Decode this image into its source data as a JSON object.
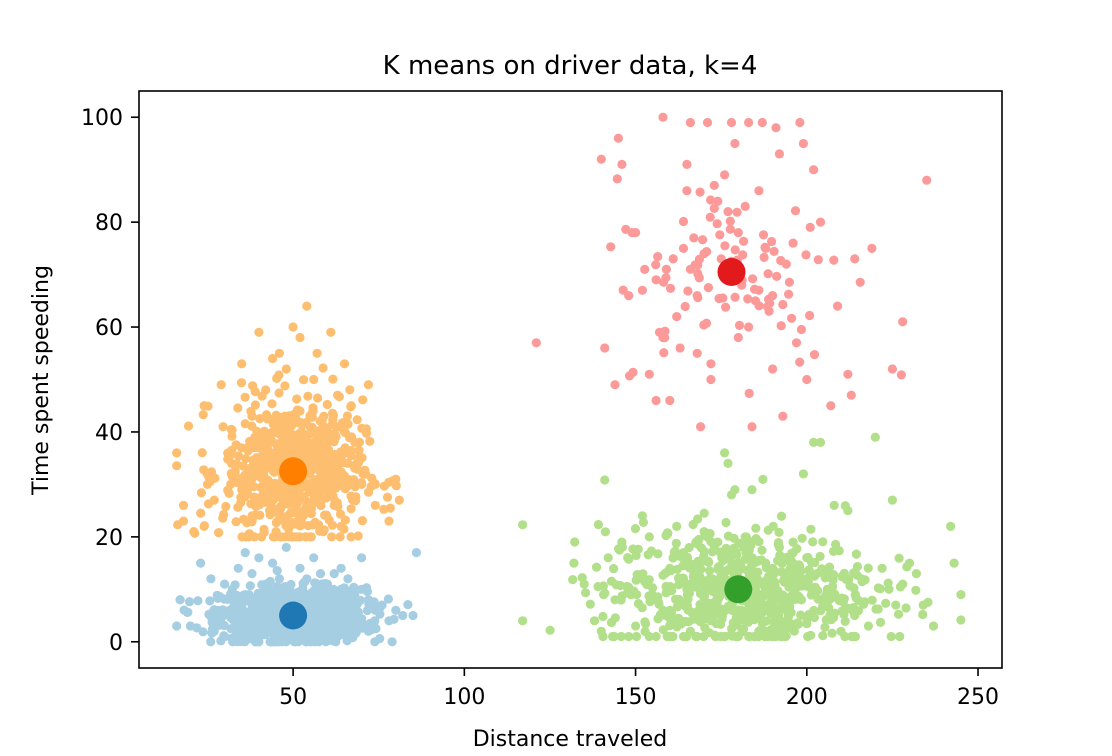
{
  "chart_data": {
    "type": "scatter",
    "title": "K means on driver data, k=4",
    "xlabel": "Distance traveled",
    "ylabel": "Time spent speeding",
    "xlim": [
      5,
      257
    ],
    "ylim": [
      -5,
      105
    ],
    "xticks": [
      50,
      100,
      150,
      200,
      250
    ],
    "yticks": [
      0,
      20,
      40,
      60,
      80,
      100
    ],
    "grid": false,
    "legend": "none",
    "clusters": [
      {
        "color": "#a6cee3",
        "centroid_color": "#1f78b4",
        "centroid": [
          50,
          5
        ],
        "spread": {
          "x": [
            17,
            86
          ],
          "y": [
            0,
            17
          ]
        },
        "point_count": 1100,
        "points": [
          [
            16,
            3
          ],
          [
            17,
            8
          ],
          [
            20,
            3
          ],
          [
            23,
            15
          ],
          [
            26,
            12
          ],
          [
            28,
            6
          ],
          [
            30,
            11
          ],
          [
            32,
            9
          ],
          [
            34,
            14
          ],
          [
            36,
            17
          ],
          [
            38,
            13
          ],
          [
            40,
            16
          ],
          [
            42,
            11
          ],
          [
            44,
            15
          ],
          [
            46,
            12
          ],
          [
            48,
            18
          ],
          [
            52,
            14
          ],
          [
            54,
            12
          ],
          [
            56,
            16
          ],
          [
            58,
            13
          ],
          [
            60,
            11
          ],
          [
            62,
            13
          ],
          [
            64,
            10
          ],
          [
            66,
            12
          ],
          [
            68,
            9
          ],
          [
            70,
            10
          ],
          [
            72,
            8
          ],
          [
            74,
            6
          ],
          [
            76,
            7
          ],
          [
            78,
            4
          ],
          [
            80,
            6
          ],
          [
            82,
            5
          ],
          [
            86,
            17
          ],
          [
            85,
            5
          ],
          [
            70,
            16
          ],
          [
            64,
            14
          ],
          [
            36,
            9
          ],
          [
            27,
            2
          ],
          [
            45,
            1
          ],
          [
            55,
            0
          ],
          [
            63,
            1
          ],
          [
            72,
            2
          ],
          [
            30,
            1
          ],
          [
            40,
            0
          ],
          [
            58,
            7
          ],
          [
            48,
            10
          ],
          [
            33,
            5
          ],
          [
            67,
            4
          ]
        ]
      },
      {
        "color": "#fdbf6f",
        "centroid_color": "#ff7f00",
        "centroid": [
          50,
          32.5
        ],
        "spread": {
          "x": [
            16,
            82
          ],
          "y": [
            20,
            64
          ]
        },
        "point_count": 700,
        "points": [
          [
            16,
            36
          ],
          [
            18,
            23
          ],
          [
            18,
            26
          ],
          [
            21,
            21
          ],
          [
            24,
            22
          ],
          [
            24,
            45
          ],
          [
            25,
            30
          ],
          [
            27,
            27
          ],
          [
            29,
            49
          ],
          [
            32,
            34
          ],
          [
            33,
            32
          ],
          [
            35,
            53
          ],
          [
            38,
            43
          ],
          [
            40,
            59
          ],
          [
            42,
            48
          ],
          [
            44,
            54
          ],
          [
            46,
            55
          ],
          [
            48,
            52
          ],
          [
            50,
            60
          ],
          [
            52,
            58
          ],
          [
            54,
            64
          ],
          [
            56,
            50
          ],
          [
            57,
            55
          ],
          [
            59,
            43
          ],
          [
            61,
            59
          ],
          [
            63,
            47
          ],
          [
            65,
            53
          ],
          [
            67,
            45
          ],
          [
            70,
            30
          ],
          [
            72,
            49
          ],
          [
            74,
            30
          ],
          [
            74,
            26
          ],
          [
            78,
            23
          ],
          [
            80,
            31
          ],
          [
            81,
            27
          ],
          [
            68,
            38
          ],
          [
            64,
            22
          ],
          [
            60,
            40
          ],
          [
            55,
            20
          ],
          [
            45,
            21
          ],
          [
            35,
            29
          ],
          [
            40,
            37
          ],
          [
            47,
            40
          ],
          [
            58,
            33
          ],
          [
            62,
            26
          ],
          [
            52,
            44
          ],
          [
            38,
            24
          ],
          [
            66,
            34
          ]
        ]
      },
      {
        "color": "#fb9a99",
        "centroid_color": "#e31a1c",
        "centroid": [
          178,
          70.5
        ],
        "spread": {
          "x": [
            121,
            235
          ],
          "y": [
            41,
            100
          ]
        },
        "point_count": 160,
        "points": [
          [
            121,
            57
          ],
          [
            140,
            92
          ],
          [
            141,
            56
          ],
          [
            144,
            49
          ],
          [
            145,
            96
          ],
          [
            146,
            91
          ],
          [
            148,
            66
          ],
          [
            149,
            78
          ],
          [
            150,
            78
          ],
          [
            152,
            67
          ],
          [
            154,
            51
          ],
          [
            156,
            46
          ],
          [
            157,
            59
          ],
          [
            158,
            100
          ],
          [
            159,
            71
          ],
          [
            160,
            46
          ],
          [
            161,
            73
          ],
          [
            163,
            56
          ],
          [
            164,
            75
          ],
          [
            165,
            91
          ],
          [
            165,
            86
          ],
          [
            166,
            99
          ],
          [
            166,
            71
          ],
          [
            167,
            77
          ],
          [
            168,
            55
          ],
          [
            169,
            41
          ],
          [
            171,
            99
          ],
          [
            172,
            53
          ],
          [
            173,
            87
          ],
          [
            174,
            84
          ],
          [
            175,
            73
          ],
          [
            176,
            89
          ],
          [
            177,
            82
          ],
          [
            178,
            99
          ],
          [
            179,
            95
          ],
          [
            180,
            58
          ],
          [
            181,
            68
          ],
          [
            182,
            83
          ],
          [
            183,
            99
          ],
          [
            184,
            41
          ],
          [
            185,
            65
          ],
          [
            186,
            86
          ],
          [
            187,
            99
          ],
          [
            188,
            75
          ],
          [
            189,
            63
          ],
          [
            190,
            52
          ],
          [
            191,
            98
          ],
          [
            192,
            93
          ],
          [
            193,
            43
          ],
          [
            197,
            57
          ],
          [
            198,
            99
          ],
          [
            199,
            95
          ],
          [
            200,
            50
          ],
          [
            201,
            79
          ],
          [
            202,
            90
          ],
          [
            204,
            80
          ],
          [
            207,
            45
          ],
          [
            209,
            64
          ],
          [
            212,
            51
          ],
          [
            213,
            47
          ],
          [
            214,
            73
          ],
          [
            219,
            75
          ],
          [
            225,
            52
          ],
          [
            228,
            61
          ],
          [
            235,
            88
          ],
          [
            196,
            76
          ],
          [
            194,
            72
          ],
          [
            186,
            67
          ],
          [
            170,
            74
          ],
          [
            162,
            62
          ],
          [
            158,
            58
          ],
          [
            172,
            50
          ],
          [
            180,
            78
          ],
          [
            190,
            66
          ],
          [
            168,
            66
          ],
          [
            156,
            69
          ],
          [
            183,
            60
          ]
        ]
      },
      {
        "color": "#b2df8a",
        "centroid_color": "#33a02c",
        "centroid": [
          180,
          10
        ],
        "spread": {
          "x": [
            117,
            245
          ],
          "y": [
            1,
            39
          ]
        },
        "point_count": 700,
        "points": [
          [
            117,
            4
          ],
          [
            132,
            15
          ],
          [
            135,
            11
          ],
          [
            138,
            4
          ],
          [
            140,
            2
          ],
          [
            142,
            16
          ],
          [
            144,
            8
          ],
          [
            146,
            19
          ],
          [
            148,
            1
          ],
          [
            150,
            3
          ],
          [
            152,
            24
          ],
          [
            154,
            20
          ],
          [
            156,
            1
          ],
          [
            158,
            6
          ],
          [
            160,
            14
          ],
          [
            162,
            22
          ],
          [
            164,
            17
          ],
          [
            166,
            2
          ],
          [
            168,
            12
          ],
          [
            170,
            21
          ],
          [
            172,
            4
          ],
          [
            174,
            19
          ],
          [
            176,
            36
          ],
          [
            177,
            34
          ],
          [
            178,
            28
          ],
          [
            179,
            29
          ],
          [
            180,
            1
          ],
          [
            182,
            20
          ],
          [
            184,
            29
          ],
          [
            186,
            2
          ],
          [
            188,
            15
          ],
          [
            190,
            1
          ],
          [
            192,
            18
          ],
          [
            194,
            4
          ],
          [
            196,
            19
          ],
          [
            199,
            32
          ],
          [
            200,
            12
          ],
          [
            202,
            38
          ],
          [
            204,
            38
          ],
          [
            206,
            10
          ],
          [
            208,
            26
          ],
          [
            210,
            2
          ],
          [
            212,
            25
          ],
          [
            214,
            5
          ],
          [
            216,
            12
          ],
          [
            218,
            3
          ],
          [
            220,
            39
          ],
          [
            222,
            14
          ],
          [
            224,
            10
          ],
          [
            225,
            27
          ],
          [
            226,
            7
          ],
          [
            228,
            11
          ],
          [
            230,
            15
          ],
          [
            232,
            13
          ],
          [
            234,
            7
          ],
          [
            242,
            22
          ],
          [
            243,
            15
          ],
          [
            245,
            9
          ],
          [
            237,
            3
          ],
          [
            200,
            16
          ],
          [
            190,
            14
          ],
          [
            170,
            8
          ],
          [
            160,
            6
          ],
          [
            210,
            8
          ],
          [
            185,
            10
          ],
          [
            175,
            12
          ],
          [
            195,
            6
          ],
          [
            165,
            10
          ]
        ]
      }
    ]
  }
}
